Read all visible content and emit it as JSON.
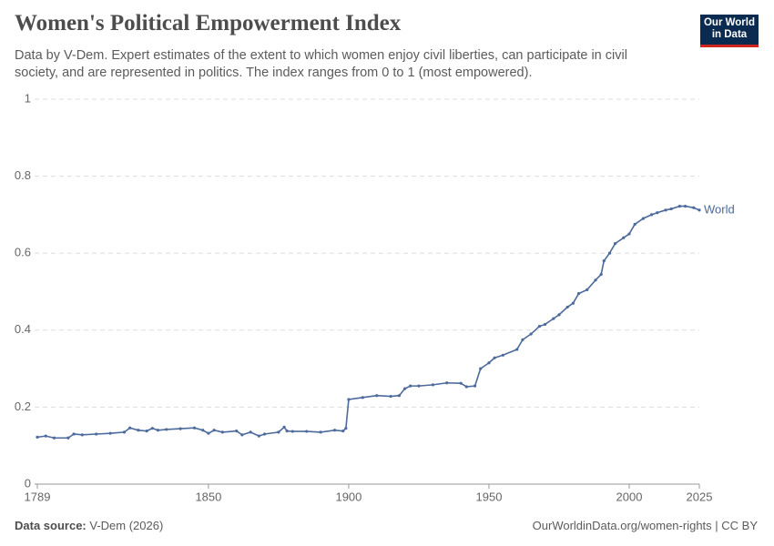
{
  "header": {
    "logo": [
      "Our World",
      "in Data"
    ]
  },
  "footer": {
    "source_label": "Data source:",
    "source": "V-Dem (2026)",
    "link": "OurWorldinData.org/women-rights | CC BY"
  },
  "chart_data": {
    "type": "line",
    "title": "Women's Political Empowerment Index",
    "subtitle": "Data by V-Dem. Expert estimates of the extent to which women enjoy civil liberties, can participate in civil society, and are represented in politics. The index ranges from 0 to 1 (most empowered).",
    "x": [
      1789,
      1792,
      1795,
      1800,
      1802,
      1805,
      1810,
      1815,
      1820,
      1822,
      1825,
      1828,
      1830,
      1832,
      1835,
      1840,
      1845,
      1848,
      1850,
      1852,
      1855,
      1860,
      1862,
      1865,
      1868,
      1870,
      1875,
      1877,
      1878,
      1880,
      1885,
      1890,
      1895,
      1898,
      1899,
      1900,
      1905,
      1910,
      1915,
      1918,
      1920,
      1922,
      1925,
      1930,
      1935,
      1940,
      1942,
      1945,
      1947,
      1950,
      1952,
      1955,
      1960,
      1962,
      1965,
      1968,
      1970,
      1973,
      1975,
      1978,
      1980,
      1982,
      1985,
      1988,
      1990,
      1991,
      1993,
      1995,
      1998,
      2000,
      2002,
      2005,
      2008,
      2010,
      2013,
      2015,
      2018,
      2020,
      2023,
      2025
    ],
    "series": [
      {
        "name": "World",
        "color": "#4c6a9c",
        "values": [
          0.122,
          0.125,
          0.12,
          0.12,
          0.13,
          0.128,
          0.13,
          0.132,
          0.135,
          0.146,
          0.14,
          0.138,
          0.145,
          0.14,
          0.142,
          0.144,
          0.146,
          0.14,
          0.132,
          0.14,
          0.135,
          0.138,
          0.128,
          0.135,
          0.125,
          0.13,
          0.135,
          0.148,
          0.138,
          0.137,
          0.137,
          0.135,
          0.14,
          0.138,
          0.145,
          0.22,
          0.225,
          0.23,
          0.228,
          0.23,
          0.248,
          0.255,
          0.255,
          0.258,
          0.263,
          0.262,
          0.253,
          0.255,
          0.3,
          0.315,
          0.328,
          0.335,
          0.35,
          0.375,
          0.39,
          0.41,
          0.415,
          0.43,
          0.44,
          0.46,
          0.47,
          0.495,
          0.505,
          0.53,
          0.545,
          0.58,
          0.6,
          0.625,
          0.64,
          0.65,
          0.675,
          0.69,
          0.7,
          0.705,
          0.712,
          0.715,
          0.722,
          0.722,
          0.718,
          0.712
        ]
      }
    ],
    "xlim": [
      1789,
      2025
    ],
    "xticks": [
      1789,
      1850,
      1900,
      1950,
      2000,
      2025
    ],
    "ylim": [
      0,
      1
    ],
    "yticks": [
      0,
      0.2,
      0.4,
      0.6,
      0.8,
      1
    ],
    "grid": true
  }
}
